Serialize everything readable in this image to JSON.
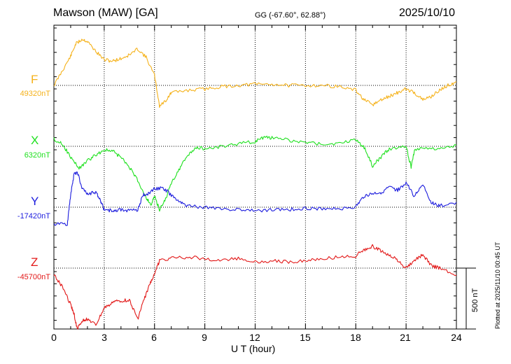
{
  "header": {
    "station": "Mawson (MAW)  [GA]",
    "coords": "GG (-67.60°,  62.88°)",
    "date": "2025/10/10"
  },
  "plotted_note": "Plotted at 2025/11/10 00:45 UT",
  "scale_label": "500 nT",
  "chart_data": {
    "type": "line",
    "xlabel": "U T (hour)",
    "xlim": [
      0,
      24
    ],
    "xticks": [
      "0",
      "3",
      "6",
      "9",
      "12",
      "15",
      "18",
      "21",
      "24"
    ],
    "scale_bar_nT": 500,
    "series": [
      {
        "name": "F",
        "baseline_label": "49320nT",
        "color": "#f5b21b",
        "x": [
          0,
          0.5,
          1,
          1.3,
          1.7,
          2,
          2.5,
          3,
          3.5,
          4,
          4.5,
          5,
          5.5,
          6,
          6.3,
          6.7,
          7,
          8,
          9,
          10,
          11,
          12,
          13,
          14,
          15,
          16,
          17,
          18,
          18.5,
          19,
          19.5,
          20,
          20.5,
          21,
          21.5,
          22,
          22.5,
          23,
          23.5,
          24
        ],
        "y": [
          49320,
          49440,
          49560,
          49660,
          49700,
          49680,
          49600,
          49530,
          49520,
          49540,
          49570,
          49620,
          49550,
          49400,
          49150,
          49200,
          49260,
          49280,
          49290,
          49310,
          49320,
          49330,
          49330,
          49320,
          49320,
          49320,
          49310,
          49280,
          49200,
          49160,
          49200,
          49230,
          49260,
          49290,
          49260,
          49200,
          49230,
          49280,
          49320,
          49350
        ]
      },
      {
        "name": "X",
        "baseline_label": "6320nT",
        "color": "#1ee01e",
        "x": [
          0,
          0.5,
          1,
          1.5,
          2,
          2.5,
          3,
          3.5,
          4,
          4.5,
          5,
          5.5,
          5.8,
          6,
          6.3,
          6.7,
          7,
          7.5,
          8,
          8.5,
          9,
          10,
          11,
          12,
          12.5,
          13,
          14,
          15,
          16,
          17,
          18,
          18.5,
          19,
          19.5,
          20,
          21,
          21.3,
          21.5,
          22,
          23,
          24
        ],
        "y": [
          6380,
          6340,
          6230,
          6140,
          6200,
          6250,
          6290,
          6280,
          6230,
          6150,
          6040,
          5900,
          5840,
          5910,
          5800,
          5900,
          6020,
          6140,
          6250,
          6310,
          6300,
          6320,
          6340,
          6360,
          6390,
          6390,
          6370,
          6350,
          6340,
          6340,
          6380,
          6310,
          6160,
          6230,
          6300,
          6320,
          6150,
          6290,
          6310,
          6300,
          6330
        ]
      },
      {
        "name": "Y",
        "baseline_label": "-17420nT",
        "color": "#1c1cdd",
        "x": [
          0,
          0.8,
          1,
          1.2,
          1.4,
          1.7,
          2,
          2.5,
          2.8,
          3,
          3.5,
          4,
          4.5,
          5,
          5.3,
          5.6,
          6,
          6.5,
          7,
          7.5,
          8,
          9,
          10,
          11,
          12,
          13,
          14,
          15,
          16,
          17,
          18,
          18.5,
          19,
          19.5,
          20,
          20.5,
          21,
          21.5,
          22,
          22.5,
          23,
          24
        ],
        "y": [
          -17560,
          -17560,
          -17320,
          -17150,
          -17130,
          -17270,
          -17310,
          -17300,
          -17370,
          -17440,
          -17450,
          -17440,
          -17450,
          -17440,
          -17320,
          -17310,
          -17270,
          -17260,
          -17320,
          -17380,
          -17410,
          -17420,
          -17430,
          -17440,
          -17450,
          -17440,
          -17440,
          -17430,
          -17430,
          -17430,
          -17420,
          -17330,
          -17310,
          -17300,
          -17260,
          -17280,
          -17220,
          -17330,
          -17230,
          -17380,
          -17410,
          -17380
        ]
      },
      {
        "name": "Z",
        "baseline_label": "-45700nT",
        "color": "#e21818",
        "x": [
          0,
          0.5,
          1,
          1.2,
          1.4,
          1.7,
          2,
          2.5,
          3,
          3.5,
          4,
          4.5,
          5,
          5.3,
          5.7,
          6,
          6.3,
          7,
          8,
          9,
          10,
          11,
          12,
          13,
          14,
          15,
          16,
          17,
          18,
          18.5,
          19,
          19.5,
          20,
          20.5,
          21,
          21.5,
          22,
          22.5,
          23,
          24
        ],
        "y": [
          -45760,
          -45850,
          -46000,
          -46080,
          -46200,
          -46130,
          -46120,
          -46170,
          -46030,
          -45980,
          -45970,
          -45960,
          -46120,
          -45990,
          -45840,
          -45740,
          -45640,
          -45620,
          -45610,
          -45620,
          -45640,
          -45620,
          -45650,
          -45640,
          -45650,
          -45640,
          -45620,
          -45610,
          -45600,
          -45550,
          -45520,
          -45560,
          -45590,
          -45640,
          -45700,
          -45640,
          -45590,
          -45680,
          -45700,
          -45760
        ]
      }
    ]
  }
}
